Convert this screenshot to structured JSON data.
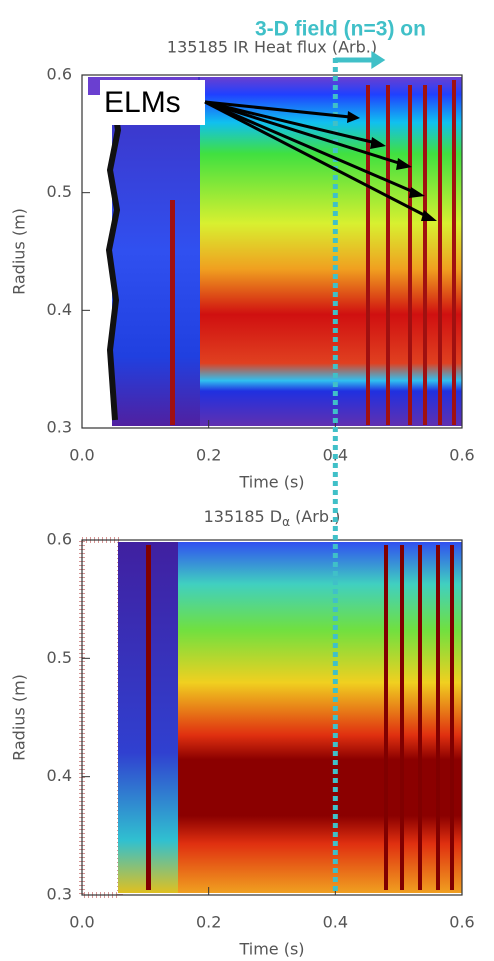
{
  "chart_data": [
    {
      "type": "heatmap",
      "title": "135185 IR Heat flux (Arb.)",
      "xlabel": "Time (s)",
      "ylabel": "Radius (m)",
      "xlim": [
        0,
        0.6
      ],
      "ylim": [
        0.3,
        0.6
      ],
      "xticks": [
        {
          "value": 0,
          "label": "0.0"
        },
        0.2,
        0.4,
        0.6
      ],
      "yticks": [
        0.3,
        0.4,
        0.5,
        0.6
      ]
    },
    {
      "type": "heatmap",
      "title": [
        "135185 D",
        "α",
        " (Arb.)"
      ],
      "xlabel": "Time (s)",
      "ylabel": "Radius (m)",
      "xlim": [
        0,
        0.6
      ],
      "ylim": [
        0.3,
        0.6
      ],
      "xticks": [
        {
          "value": 0,
          "label": "0.0"
        },
        0.2,
        0.4,
        0.6
      ],
      "yticks": [
        0.3,
        0.4,
        0.5,
        0.6
      ]
    }
  ],
  "annotations": {
    "field": {
      "text": "3-D field (n=3) on",
      "x": 0.4
    },
    "elms": "ELMs"
  }
}
